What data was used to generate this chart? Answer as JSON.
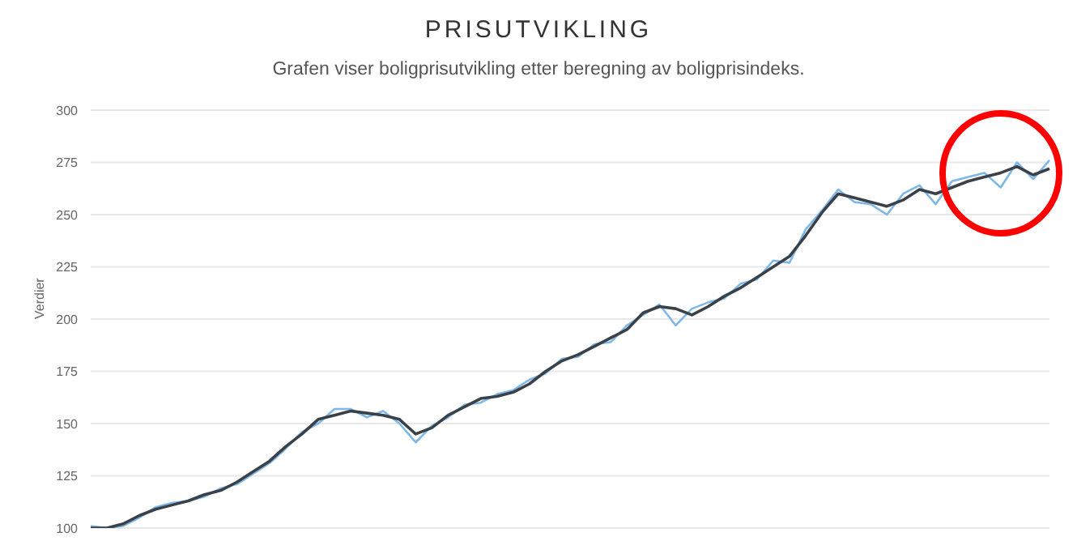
{
  "chart_data": {
    "type": "line",
    "title": "PRISUTVIKLING",
    "subtitle": "Grafen viser boligprisutvikling etter beregning av boligprisindeks.",
    "ylabel": "Verdier",
    "categories": [
      null,
      null,
      null,
      null,
      null,
      null,
      null,
      null,
      null,
      null,
      null,
      null,
      null,
      null,
      null,
      null,
      null,
      null,
      null,
      null,
      null,
      null,
      null,
      null,
      null,
      null,
      null,
      null,
      null,
      null,
      null,
      null,
      null,
      null,
      null,
      null,
      null,
      null,
      null,
      null,
      null,
      null,
      null,
      null,
      null,
      null,
      null,
      null,
      null,
      null,
      null,
      null,
      null,
      null,
      null,
      null,
      null,
      null,
      null,
      null
    ],
    "series": [
      {
        "color": "#7fb8e8",
        "values": [
          101,
          100,
          101,
          105,
          110,
          112,
          113,
          115,
          119,
          121,
          126,
          131,
          138,
          146,
          150,
          157,
          157,
          153,
          156,
          150,
          141,
          149,
          153,
          159,
          160,
          164,
          166,
          171,
          174,
          181,
          182,
          188,
          189,
          197,
          202,
          207,
          197,
          205,
          208,
          210,
          217,
          219,
          228,
          227,
          243,
          252,
          262,
          256,
          255,
          250,
          260,
          264,
          255,
          266,
          268,
          270,
          263,
          275,
          267,
          276
        ]
      },
      {
        "color": "#3a4149",
        "values": [
          100,
          100,
          102,
          106,
          109,
          111,
          113,
          116,
          118,
          122,
          127,
          132,
          139,
          145,
          152,
          154,
          156,
          155,
          154,
          152,
          145,
          148,
          154,
          158,
          162,
          163,
          165,
          169,
          175,
          180,
          183,
          187,
          191,
          195,
          203,
          206,
          205,
          202,
          206,
          211,
          215,
          220,
          225,
          230,
          240,
          251,
          260,
          258,
          256,
          254,
          257,
          262,
          260,
          263,
          266,
          268,
          270,
          273,
          269,
          272
        ]
      }
    ],
    "ylim": [
      100,
      300
    ],
    "yticks": [
      100,
      125,
      150,
      175,
      200,
      225,
      250,
      275,
      300
    ],
    "grid": "y",
    "tick_labels": "y",
    "marker": "none",
    "line_style": "solid"
  }
}
